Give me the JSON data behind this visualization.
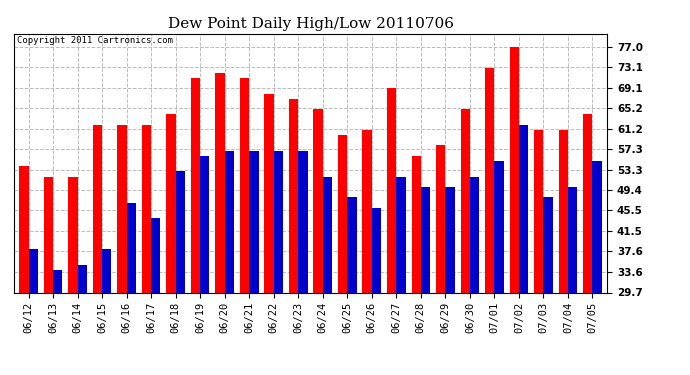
{
  "title": "Dew Point Daily High/Low 20110706",
  "copyright": "Copyright 2011 Cartronics.com",
  "categories": [
    "06/12",
    "06/13",
    "06/14",
    "06/15",
    "06/16",
    "06/17",
    "06/18",
    "06/19",
    "06/20",
    "06/21",
    "06/22",
    "06/23",
    "06/24",
    "06/25",
    "06/26",
    "06/27",
    "06/28",
    "06/29",
    "06/30",
    "07/01",
    "07/02",
    "07/03",
    "07/04",
    "07/05"
  ],
  "highs": [
    54,
    52,
    52,
    62,
    62,
    62,
    64,
    71,
    72,
    71,
    68,
    67,
    65,
    60,
    61,
    69,
    56,
    58,
    65,
    73,
    77,
    61,
    61,
    64
  ],
  "lows": [
    38,
    34,
    35,
    38,
    47,
    44,
    53,
    56,
    57,
    57,
    57,
    57,
    52,
    48,
    46,
    52,
    50,
    50,
    52,
    55,
    62,
    48,
    50,
    55
  ],
  "high_color": "#ff0000",
  "low_color": "#0000cc",
  "bg_color": "#ffffff",
  "yticks": [
    29.7,
    33.6,
    37.6,
    41.5,
    45.5,
    49.4,
    53.3,
    57.3,
    61.2,
    65.2,
    69.1,
    73.1,
    77.0
  ],
  "ymin": 29.7,
  "ymax": 79.5,
  "grid_color": "#bbbbbb",
  "title_fontsize": 11,
  "copyright_fontsize": 6.5,
  "tick_fontsize": 7.5,
  "bar_width": 0.38
}
